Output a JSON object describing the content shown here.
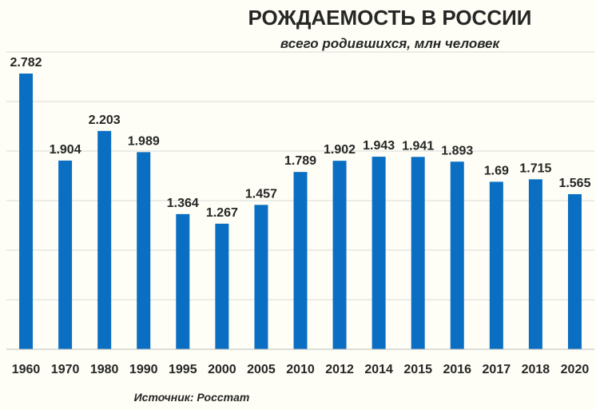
{
  "chart_data": {
    "type": "bar",
    "title": "РОЖДАЕМОСТЬ В РОССИИ",
    "subtitle": "всего родившихся, млн человек",
    "categories": [
      "1960",
      "1970",
      "1980",
      "1990",
      "1995",
      "2000",
      "2005",
      "2010",
      "2012",
      "2014",
      "2015",
      "2016",
      "2017",
      "2018",
      "2020"
    ],
    "values": [
      2.782,
      1.904,
      2.203,
      1.989,
      1.364,
      1.267,
      1.457,
      1.789,
      1.902,
      1.943,
      1.941,
      1.893,
      1.69,
      1.715,
      1.565
    ],
    "value_labels": [
      "2.782",
      "1.904",
      "2.203",
      "1.989",
      "1.364",
      "1.267",
      "1.457",
      "1.789",
      "1.902",
      "1.943",
      "1.941",
      "1.893",
      "1.69",
      "1.715",
      "1.565"
    ],
    "ylim": [
      0,
      3.0
    ],
    "grid": true,
    "legend": "none",
    "bar_color": "#0a6fc2",
    "source": "Источник: Росстат"
  }
}
